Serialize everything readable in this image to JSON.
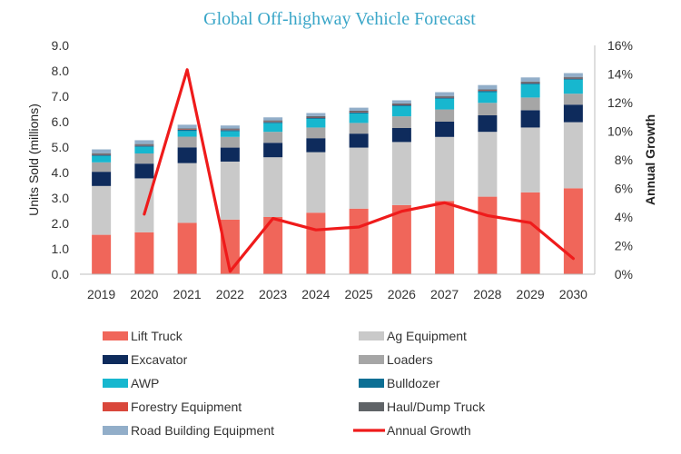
{
  "chart_data": {
    "type": "bar",
    "title": "Global Off-highway Vehicle Forecast",
    "categories": [
      "2019",
      "2020",
      "2021",
      "2022",
      "2023",
      "2024",
      "2025",
      "2026",
      "2027",
      "2028",
      "2029",
      "2030"
    ],
    "ylabel": "Units Sold (millions)",
    "y2label": "Annual Growth",
    "ylim": [
      0,
      9
    ],
    "y2lim": [
      0,
      16
    ],
    "yticks": [
      "0.0",
      "1.0",
      "2.0",
      "3.0",
      "4.0",
      "5.0",
      "6.0",
      "7.0",
      "8.0",
      "9.0"
    ],
    "y2ticks": [
      "0%",
      "2%",
      "4%",
      "6%",
      "8%",
      "10%",
      "12%",
      "14%",
      "16%"
    ],
    "grid": false,
    "legend_placement": "bottom",
    "series": [
      {
        "name": "Lift Truck",
        "color": "#f0665a",
        "values": [
          1.55,
          1.65,
          2.02,
          2.15,
          2.25,
          2.42,
          2.58,
          2.72,
          2.88,
          3.05,
          3.22,
          3.38
        ]
      },
      {
        "name": "Ag Equipment",
        "color": "#c9c9c9",
        "values": [
          1.92,
          2.12,
          2.35,
          2.28,
          2.35,
          2.38,
          2.4,
          2.48,
          2.52,
          2.55,
          2.55,
          2.6
        ]
      },
      {
        "name": "Excavator",
        "color": "#0e2b5c",
        "values": [
          0.56,
          0.58,
          0.62,
          0.55,
          0.57,
          0.55,
          0.55,
          0.55,
          0.6,
          0.65,
          0.68,
          0.69
        ]
      },
      {
        "name": "Loaders",
        "color": "#a6a6a6",
        "values": [
          0.37,
          0.4,
          0.42,
          0.42,
          0.43,
          0.42,
          0.42,
          0.46,
          0.48,
          0.49,
          0.5,
          0.43
        ]
      },
      {
        "name": "AWP",
        "color": "#17b7cf",
        "values": [
          0.25,
          0.26,
          0.22,
          0.22,
          0.34,
          0.34,
          0.37,
          0.4,
          0.42,
          0.42,
          0.52,
          0.55
        ]
      },
      {
        "name": "Bulldozer",
        "color": "#0c6f94",
        "values": [
          0.05,
          0.05,
          0.05,
          0.05,
          0.05,
          0.05,
          0.05,
          0.05,
          0.05,
          0.05,
          0.05,
          0.05
        ]
      },
      {
        "name": "Forestry Equipment",
        "color": "#d9473b",
        "values": [
          0.02,
          0.02,
          0.02,
          0.02,
          0.02,
          0.02,
          0.02,
          0.02,
          0.02,
          0.02,
          0.02,
          0.02
        ]
      },
      {
        "name": "Haul/Dump Truck",
        "color": "#5f6367",
        "values": [
          0.04,
          0.04,
          0.04,
          0.04,
          0.04,
          0.04,
          0.04,
          0.04,
          0.04,
          0.04,
          0.04,
          0.04
        ]
      },
      {
        "name": "Road Building Equipment",
        "color": "#92aec9",
        "values": [
          0.15,
          0.15,
          0.14,
          0.12,
          0.12,
          0.12,
          0.12,
          0.12,
          0.15,
          0.17,
          0.16,
          0.15
        ]
      }
    ],
    "line_series": {
      "name": "Annual Growth",
      "color": "#ef1b1b",
      "x": [
        "2020",
        "2021",
        "2022",
        "2023",
        "2024",
        "2025",
        "2026",
        "2027",
        "2028",
        "2029",
        "2030"
      ],
      "values": [
        4.2,
        14.3,
        0.2,
        3.9,
        3.1,
        3.3,
        4.4,
        5.0,
        4.1,
        3.6,
        1.1
      ]
    },
    "legend": [
      {
        "label": "Lift Truck",
        "color": "#f0665a",
        "marker": "box"
      },
      {
        "label": "Ag Equipment",
        "color": "#c9c9c9",
        "marker": "box"
      },
      {
        "label": "Excavator",
        "color": "#0e2b5c",
        "marker": "box"
      },
      {
        "label": "Loaders",
        "color": "#a6a6a6",
        "marker": "box"
      },
      {
        "label": "AWP",
        "color": "#17b7cf",
        "marker": "box"
      },
      {
        "label": "Bulldozer",
        "color": "#0c6f94",
        "marker": "box"
      },
      {
        "label": "Forestry Equipment",
        "color": "#d9473b",
        "marker": "box"
      },
      {
        "label": "Haul/Dump Truck",
        "color": "#5f6367",
        "marker": "box"
      },
      {
        "label": "Road Building Equipment",
        "color": "#92aec9",
        "marker": "box"
      },
      {
        "label": "Annual Growth",
        "color": "#ef1b1b",
        "marker": "line"
      }
    ]
  }
}
